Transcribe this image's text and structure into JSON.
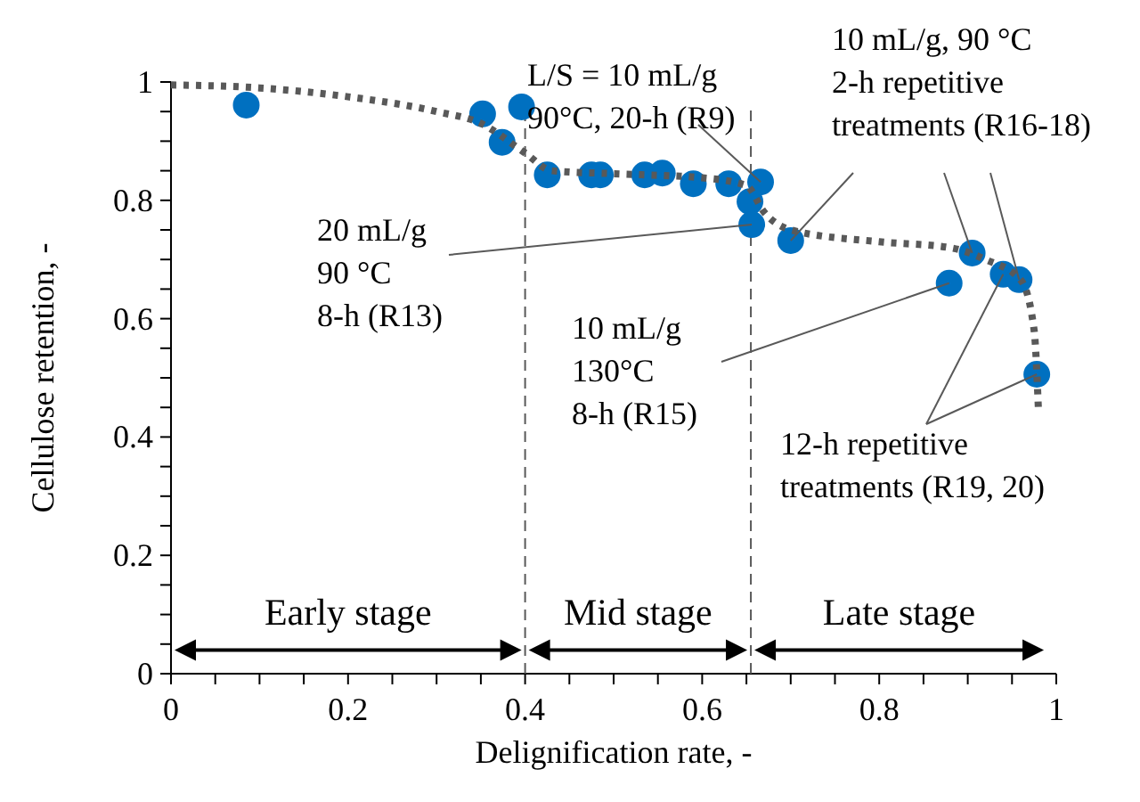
{
  "chart_data": {
    "type": "scatter",
    "xlabel": "Delignification rate, -",
    "ylabel": "Cellulose retention, -",
    "xlim": [
      0,
      1
    ],
    "ylim": [
      0,
      1
    ],
    "xticks": [
      0,
      {
        "value": 0.05,
        "label": null
      },
      0.2,
      {
        "value": 0.1,
        "label": null
      },
      {
        "value": 0.15,
        "label": null
      },
      {
        "value": 0.25,
        "label": null
      },
      {
        "value": 0.3,
        "label": null
      },
      {
        "value": 0.35,
        "label": null
      },
      0.4,
      {
        "value": 0.45,
        "label": null
      },
      {
        "value": 0.5,
        "label": null
      },
      {
        "value": 0.55,
        "label": null
      },
      0.6,
      {
        "value": 0.65,
        "label": null
      },
      {
        "value": 0.7,
        "label": null
      },
      {
        "value": 0.75,
        "label": null
      },
      0.8,
      {
        "value": 0.85,
        "label": null
      },
      {
        "value": 0.9,
        "label": null
      },
      {
        "value": 0.95,
        "label": null
      },
      1
    ],
    "yticks": [
      0,
      {
        "value": 0.05,
        "label": null
      },
      {
        "value": 0.1,
        "label": null
      },
      {
        "value": 0.15,
        "label": null
      },
      0.2,
      {
        "value": 0.25,
        "label": null
      },
      {
        "value": 0.3,
        "label": null
      },
      {
        "value": 0.35,
        "label": null
      },
      0.4,
      {
        "value": 0.45,
        "label": null
      },
      {
        "value": 0.5,
        "label": null
      },
      {
        "value": 0.55,
        "label": null
      },
      0.6,
      {
        "value": 0.65,
        "label": null
      },
      {
        "value": 0.7,
        "label": null
      },
      {
        "value": 0.75,
        "label": null
      },
      0.8,
      {
        "value": 0.85,
        "label": null
      },
      {
        "value": 0.9,
        "label": null
      },
      {
        "value": 0.95,
        "label": null
      },
      1
    ],
    "grid": false,
    "series": [
      {
        "color": "#0070c0",
        "marker": "circle",
        "x": [
          0.085,
          0.352,
          0.374,
          0.396,
          0.425,
          0.475,
          0.485,
          0.535,
          0.555,
          0.59,
          0.63,
          0.654,
          0.656,
          0.666,
          0.7,
          0.905,
          0.879,
          0.94,
          0.958,
          0.978
        ],
        "values": [
          0.961,
          0.946,
          0.898,
          0.958,
          0.843,
          0.843,
          0.843,
          0.843,
          0.846,
          0.828,
          0.828,
          0.798,
          0.759,
          0.831,
          0.732,
          0.711,
          0.66,
          0.675,
          0.666,
          0.506
        ]
      },
      {
        "type": "line",
        "color": "#595959",
        "line_style": "dotted",
        "marker": "none",
        "x": [
          0,
          0.1,
          0.2,
          0.3,
          0.35,
          0.4,
          0.43,
          0.5,
          0.6,
          0.65,
          0.67,
          0.7,
          0.8,
          0.88,
          0.92,
          0.96,
          0.975,
          0.98
        ],
        "values": [
          0.995,
          0.99,
          0.975,
          0.95,
          0.93,
          0.88,
          0.85,
          0.845,
          0.838,
          0.825,
          0.78,
          0.75,
          0.73,
          0.72,
          0.7,
          0.665,
          0.58,
          0.44
        ]
      }
    ],
    "ref_lines": [
      {
        "axis": "x",
        "value": 0.4,
        "color": "#595959",
        "line_style": "dashed"
      },
      {
        "axis": "x",
        "value": 0.655,
        "color": "#595959",
        "line_style": "dashed"
      }
    ],
    "annotations": [
      "Early stage",
      "Mid stage",
      "Late stage",
      {
        "text": "L/S = 10 mL/g\n90°C, 20-h (R9)",
        "x": 0.666,
        "y": 0.831
      },
      {
        "text": "10 mL/g, 90 °C\n2-h repetitive\ntreatments (R16-18)",
        "x": 0.905,
        "y": 0.711
      },
      {
        "text": "20 mL/g\n90 °C\n8-h (R13)",
        "x": 0.656,
        "y": 0.759
      },
      {
        "text": "10 mL/g\n130°C\n8-h (R15)",
        "x": 0.879,
        "y": 0.66
      },
      {
        "text": "12-h repetitive\ntreatments (R19, 20)",
        "x": 0.978,
        "y": 0.506
      }
    ]
  }
}
